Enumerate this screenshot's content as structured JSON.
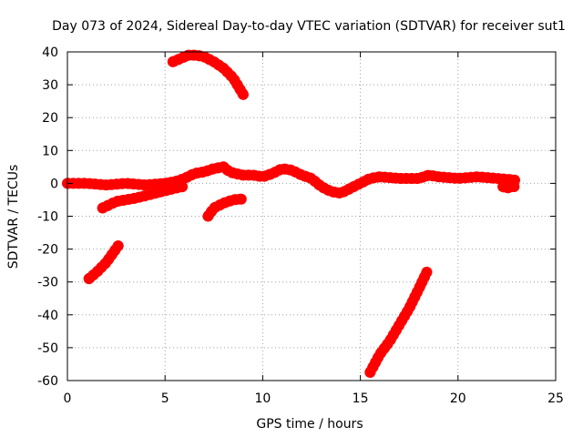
{
  "chart_data": {
    "type": "line",
    "title": "Day 073 of 2024, Sidereal Day-to-day VTEC variation (SDTVAR) for receiver sut1",
    "xlabel": "GPS time / hours",
    "ylabel": "SDTVAR / TECUs",
    "xlim": [
      0,
      25
    ],
    "ylim": [
      -60,
      40
    ],
    "xticks": [
      0,
      5,
      10,
      15,
      20,
      25
    ],
    "yticks": [
      -60,
      -50,
      -40,
      -30,
      -20,
      -10,
      0,
      10,
      20,
      30,
      40
    ],
    "xtick_labels": [
      "0",
      "5",
      "10",
      "15",
      "20",
      "25"
    ],
    "ytick_labels": [
      "-60",
      "-50",
      "-40",
      "-30",
      "-20",
      "-10",
      "0",
      "10",
      "20",
      "30",
      "40"
    ],
    "grid": true,
    "legend": "none",
    "color": "#ff0000",
    "series": [
      {
        "name": "main",
        "x": [
          0,
          1,
          2,
          3,
          4,
          5,
          5.5,
          6,
          6.5,
          7,
          7.5,
          8,
          8.3,
          8.6,
          9,
          9.5,
          10,
          10.5,
          11,
          11.5,
          12,
          12.5,
          13,
          13.5,
          14,
          14.5,
          15,
          15.5,
          16,
          17,
          18,
          18.5,
          19,
          20,
          21,
          22,
          22.9
        ],
        "y": [
          0,
          0,
          -0.5,
          0,
          -0.5,
          0,
          0.5,
          1.5,
          3,
          3.5,
          4.5,
          5,
          3.5,
          3,
          2.5,
          2.5,
          2,
          3,
          4.5,
          4,
          2.5,
          1.5,
          -1,
          -2.5,
          -3,
          -1.5,
          0,
          1.5,
          2,
          1.5,
          1.5,
          2.5,
          2,
          1.5,
          2,
          1.5,
          1
        ]
      },
      {
        "name": "tail",
        "x": [
          22.3,
          22.5,
          22.7,
          22.9
        ],
        "y": [
          -1,
          -1.5,
          -1,
          -1
        ]
      },
      {
        "name": "segment-a",
        "x": [
          1.8,
          2.5,
          3.5,
          4.5,
          5.5,
          5.9
        ],
        "y": [
          -7.5,
          -5.5,
          -4.5,
          -3,
          -1.5,
          -1
        ]
      },
      {
        "name": "segment-b",
        "x": [
          5.4,
          5.8,
          6.2,
          6.6,
          7,
          7.5,
          8,
          8.5,
          9
        ],
        "y": [
          37,
          38,
          39,
          39,
          38.5,
          37,
          35,
          32,
          27
        ]
      },
      {
        "name": "segment-c",
        "x": [
          7.2,
          7.5,
          8,
          8.5,
          8.9
        ],
        "y": [
          -10,
          -7.5,
          -6,
          -5,
          -4.8
        ]
      },
      {
        "name": "segment-d",
        "x": [
          1.1,
          1.5,
          2,
          2.6
        ],
        "y": [
          -29,
          -27,
          -24,
          -19
        ]
      },
      {
        "name": "segment-e",
        "x": [
          15.5,
          16,
          16.5,
          17,
          17.5,
          18,
          18.4
        ],
        "y": [
          -57.5,
          -52,
          -48,
          -43,
          -38,
          -32,
          -27
        ]
      }
    ]
  }
}
